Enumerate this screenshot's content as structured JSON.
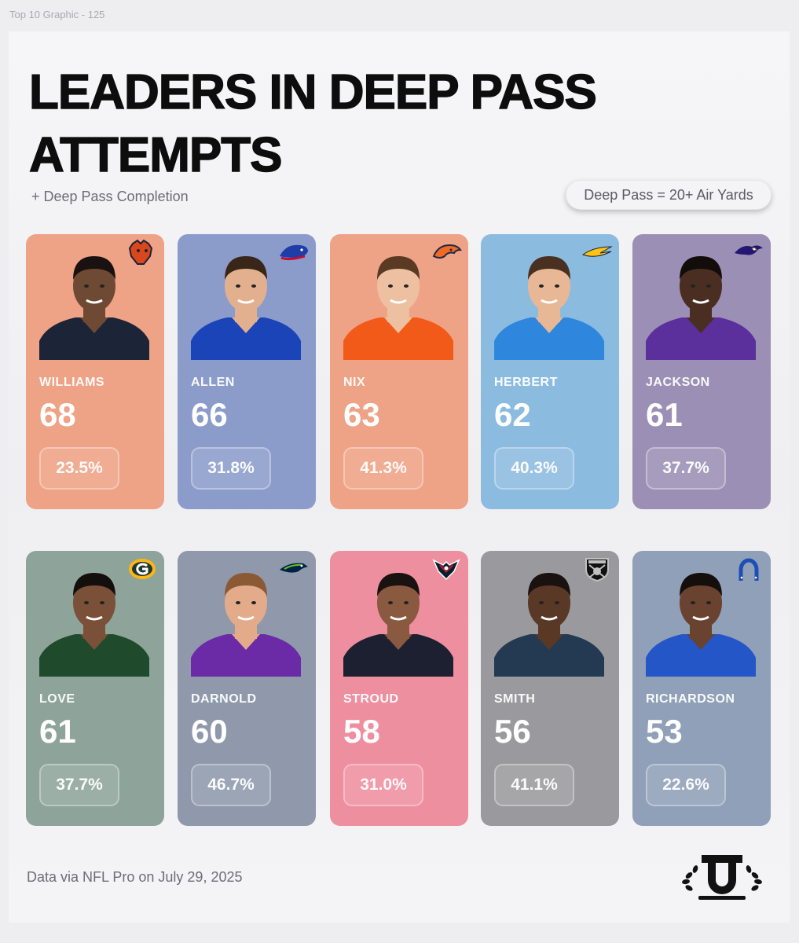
{
  "frame_label": "Top 10 Graphic - 125",
  "title": "LEADERS IN DEEP PASS ATTEMPTS",
  "subtitle": "+ Deep Pass Completion",
  "definition": "Deep Pass = 20+ Air Yards",
  "source": "Data via NFL Pro on July 29, 2025",
  "players": [
    {
      "name": "WILLIAMS",
      "attempts": "68",
      "completion": "23.5%",
      "card_color": "#eea286",
      "jersey_color": "#1c2438",
      "team_icon": "bears-logo-icon"
    },
    {
      "name": "ALLEN",
      "attempts": "66",
      "completion": "31.8%",
      "card_color": "#8b9ccb",
      "jersey_color": "#1a44b8",
      "team_icon": "bills-logo-icon"
    },
    {
      "name": "NIX",
      "attempts": "63",
      "completion": "41.3%",
      "card_color": "#eea286",
      "jersey_color": "#f25a1a",
      "team_icon": "broncos-logo-icon"
    },
    {
      "name": "HERBERT",
      "attempts": "62",
      "completion": "40.3%",
      "card_color": "#8cbbe0",
      "jersey_color": "#2e87dc",
      "team_icon": "chargers-logo-icon"
    },
    {
      "name": "JACKSON",
      "attempts": "61",
      "completion": "37.7%",
      "card_color": "#9c8fb5",
      "jersey_color": "#5b2f9c",
      "team_icon": "ravens-logo-icon"
    },
    {
      "name": "LOVE",
      "attempts": "61",
      "completion": "37.7%",
      "card_color": "#8ea49b",
      "jersey_color": "#1f4a2c",
      "team_icon": "packers-logo-icon"
    },
    {
      "name": "DARNOLD",
      "attempts": "60",
      "completion": "46.7%",
      "card_color": "#8f99ab",
      "jersey_color": "#6b2ba6",
      "team_icon": "seahawks-logo-icon"
    },
    {
      "name": "STROUD",
      "attempts": "58",
      "completion": "31.0%",
      "card_color": "#ee8fa0",
      "jersey_color": "#1c2030",
      "team_icon": "texans-logo-icon"
    },
    {
      "name": "SMITH",
      "attempts": "56",
      "completion": "41.1%",
      "card_color": "#9a9a9e",
      "jersey_color": "#243a52",
      "team_icon": "raiders-logo-icon"
    },
    {
      "name": "RICHARDSON",
      "attempts": "53",
      "completion": "22.6%",
      "card_color": "#8fa0b8",
      "jersey_color": "#2456c8",
      "team_icon": "colts-logo-icon"
    }
  ]
}
